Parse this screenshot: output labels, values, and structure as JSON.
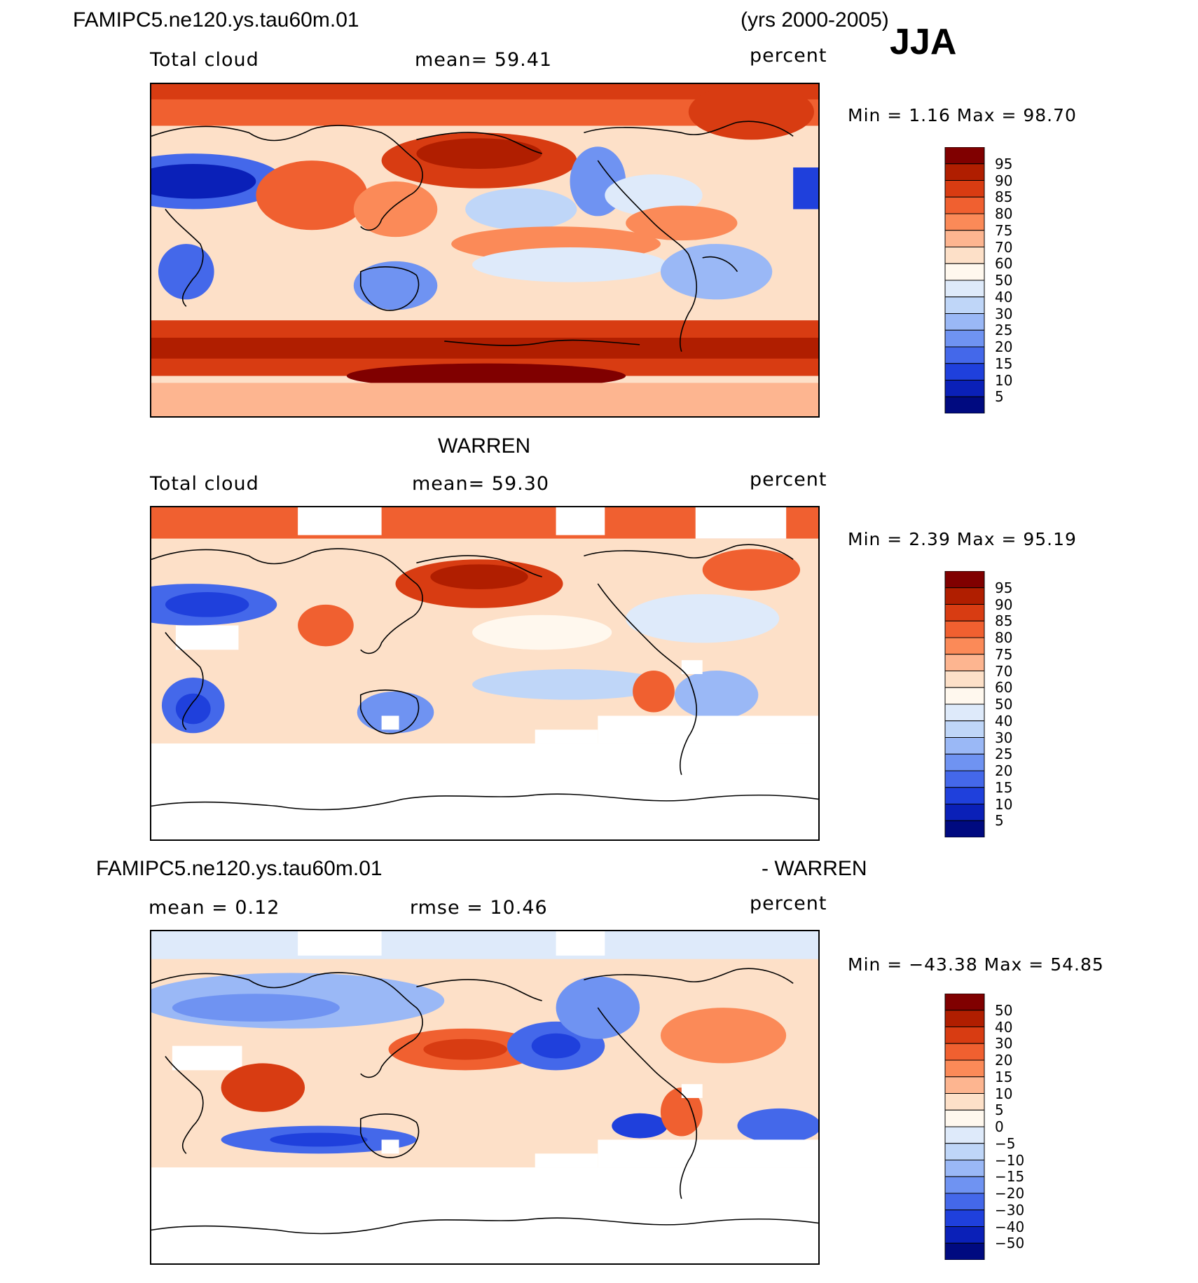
{
  "case_name": "FAMIPC5.ne120.ys.tau60m.01",
  "years": "(yrs 2000-2005)",
  "season": "JJA",
  "panels": [
    {
      "id": "model",
      "variable": "Total cloud",
      "stat_text": "mean=   59.41",
      "units": "percent",
      "minmax_text": "Min =     1.16 Max =    98.70",
      "colorbar_labels": [
        "95",
        "90",
        "85",
        "80",
        "75",
        "70",
        "60",
        "50",
        "40",
        "30",
        "25",
        "20",
        "15",
        "10",
        "5"
      ]
    },
    {
      "id": "obs",
      "title": "WARREN",
      "variable": "Total cloud",
      "stat_text": "mean=   59.30",
      "units": "percent",
      "minmax_text": "Min =     2.39 Max =    95.19",
      "colorbar_labels": [
        "95",
        "90",
        "85",
        "80",
        "75",
        "70",
        "60",
        "50",
        "40",
        "30",
        "25",
        "20",
        "15",
        "10",
        "5"
      ]
    },
    {
      "id": "diff",
      "title_left": "FAMIPC5.ne120.ys.tau60m.01",
      "title_right": "- WARREN",
      "stat_text": "mean =     0.12",
      "stat2_text": "rmse =    10.46",
      "units": "percent",
      "minmax_text": "Min = −43.38 Max =    54.85",
      "colorbar_labels": [
        "50",
        "40",
        "30",
        "20",
        "15",
        "10",
        "5",
        "0",
        "−5",
        "−10",
        "−15",
        "−20",
        "−30",
        "−40",
        "−50"
      ]
    }
  ],
  "colors": {
    "cloud_scale": [
      "#800000",
      "#b01e00",
      "#d83c12",
      "#f06030",
      "#fb8a58",
      "#fdb590",
      "#fde0c8",
      "#fff8ee",
      "#deeafa",
      "#bfd6f8",
      "#9ab8f6",
      "#6f93f2",
      "#4468ea",
      "#1f40dc",
      "#0a20b8",
      "#000a80"
    ],
    "diff_scale": [
      "#800000",
      "#b01e00",
      "#d83c12",
      "#f06030",
      "#fb8a58",
      "#fdb590",
      "#fde0c8",
      "#fff8ee",
      "#deeafa",
      "#bfd6f8",
      "#9ab8f6",
      "#6f93f2",
      "#4468ea",
      "#1f40dc",
      "#0a20b8",
      "#000a80"
    ]
  }
}
